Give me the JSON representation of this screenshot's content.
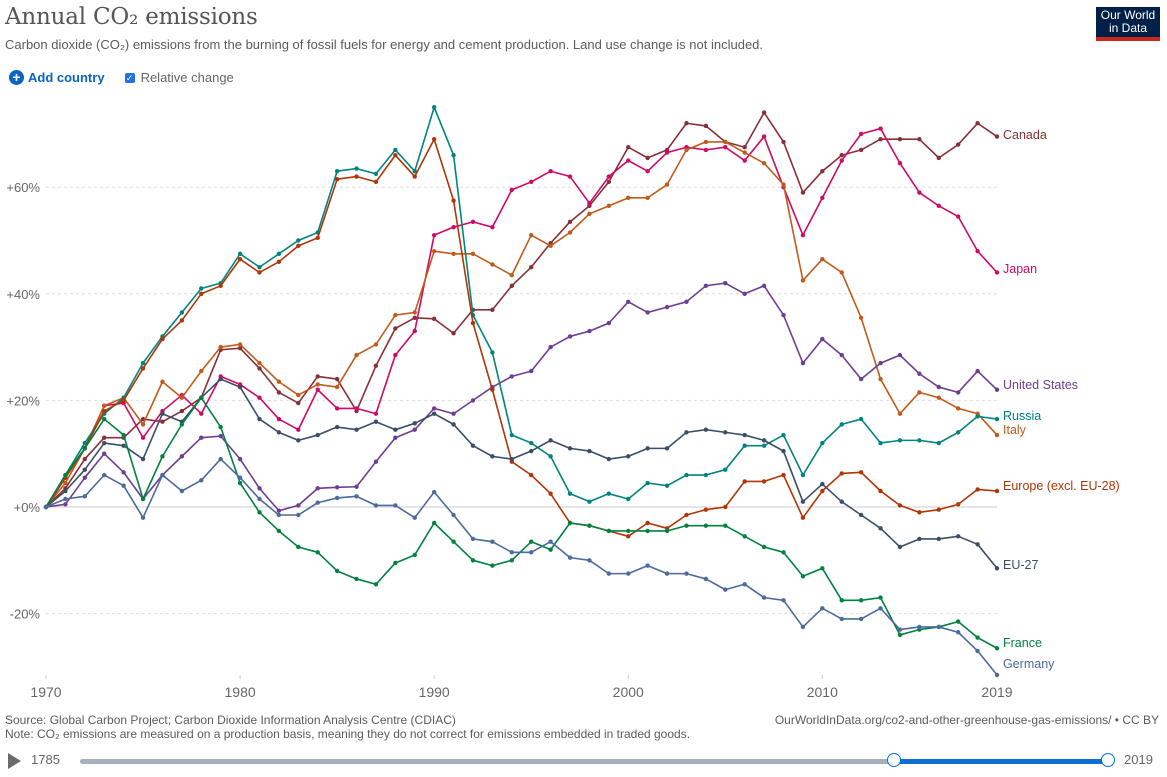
{
  "header": {
    "title": "Annual CO₂ emissions",
    "subtitle": "Carbon dioxide (CO₂) emissions from the burning of fossil fuels for energy and cement production. Land use change is not included.",
    "logo_line1": "Our World",
    "logo_line2": "in Data"
  },
  "controls": {
    "add_country_icon": "plus-circle-icon",
    "add_country_label": "Add country",
    "relative_change_label": "Relative change",
    "relative_change_checked": true
  },
  "footer": {
    "source": "Source: Global Carbon Project; Carbon Dioxide Information Analysis Centre (CDIAC)",
    "note": "Note: CO₂ emissions are measured on a production basis, meaning they do not correct for emissions embedded in traded goods.",
    "url": "OurWorldInData.org/co2-and-other-greenhouse-gas-emissions/ • CC BY"
  },
  "timeline": {
    "start_year": "1785",
    "end_year": "2019",
    "range_start_year": 1970,
    "range_end_year": 2019,
    "min_year": 1785,
    "max_year": 2019
  },
  "chart_data": {
    "type": "line",
    "title": "Annual CO₂ emissions",
    "xlabel": "",
    "ylabel": "Relative change",
    "x_ticks": [
      "1970",
      "1980",
      "1990",
      "2000",
      "2010",
      "2019"
    ],
    "x_tick_values": [
      1970,
      1980,
      1990,
      2000,
      2010,
      2019
    ],
    "y_ticks": [
      "-20%",
      "+0%",
      "+20%",
      "+40%",
      "+60%"
    ],
    "y_tick_values": [
      -20,
      0,
      20,
      40,
      60
    ],
    "xlim": [
      1970,
      2019
    ],
    "ylim": [
      -32,
      76
    ],
    "grid": "horizontal-dashed",
    "legend": "inline-right",
    "x": [
      1970,
      1971,
      1972,
      1973,
      1974,
      1975,
      1976,
      1977,
      1978,
      1979,
      1980,
      1981,
      1982,
      1983,
      1984,
      1985,
      1986,
      1987,
      1988,
      1989,
      1990,
      1991,
      1992,
      1993,
      1994,
      1995,
      1996,
      1997,
      1998,
      1999,
      2000,
      2001,
      2002,
      2003,
      2004,
      2005,
      2006,
      2007,
      2008,
      2009,
      2010,
      2011,
      2012,
      2013,
      2014,
      2015,
      2016,
      2017,
      2018,
      2019
    ],
    "series": [
      {
        "name": "Canada",
        "color": "#883039",
        "values": [
          0,
          3.5,
          9,
          13,
          13,
          16.5,
          16,
          18,
          20.5,
          29.5,
          29.8,
          26,
          21.5,
          19.5,
          24.5,
          24,
          18,
          26.5,
          33.5,
          35.5,
          35.3,
          32.6,
          37,
          37,
          41.5,
          45,
          49.5,
          53.5,
          56.5,
          61,
          67.5,
          65.5,
          67,
          72,
          71.5,
          68.5,
          67.5,
          74,
          68.5,
          59,
          63,
          66,
          67,
          69,
          69,
          69,
          65.5,
          68,
          72,
          69.5
        ]
      },
      {
        "name": "Japan",
        "color": "#cf0a66",
        "values": [
          0,
          5.5,
          11,
          19,
          19.5,
          13,
          18,
          21,
          17.5,
          24.5,
          23,
          20.5,
          16.5,
          14.5,
          22,
          18.5,
          18.5,
          17.5,
          28.5,
          33,
          51,
          52.5,
          53.5,
          52.5,
          59.5,
          61,
          63,
          62,
          57,
          62,
          65,
          63,
          66.5,
          67.5,
          67,
          67.5,
          65,
          69.5,
          60,
          51,
          58,
          65,
          70,
          71,
          64.5,
          59,
          56.5,
          54.5,
          48,
          44
        ]
      },
      {
        "name": "Italy",
        "color": "#c15b1b",
        "values": [
          0,
          4.5,
          11,
          19,
          20.5,
          15.5,
          23.5,
          20.5,
          25.5,
          30,
          30.5,
          27,
          23.5,
          21,
          23,
          22.5,
          28.5,
          30.5,
          36,
          36.5,
          48,
          47.5,
          47.5,
          45.5,
          43.5,
          51,
          49,
          51.5,
          55,
          56.5,
          58,
          58,
          60.5,
          67,
          68.5,
          68.5,
          66.5,
          64.5,
          60.5,
          42.5,
          46.5,
          44,
          35.5,
          24,
          17.5,
          21.5,
          20.5,
          18.5,
          17.5,
          13.5
        ]
      },
      {
        "name": "United States",
        "color": "#6d3e91",
        "values": [
          0,
          0.5,
          5.5,
          10,
          6.5,
          1.5,
          6,
          9.5,
          13,
          13.3,
          9,
          3.5,
          -0.7,
          0.3,
          3.5,
          3.7,
          3.8,
          8.5,
          13,
          14.5,
          18.5,
          17.5,
          20,
          22.5,
          24.5,
          25.5,
          30,
          32,
          33,
          34.5,
          38.5,
          36.5,
          37.5,
          38.5,
          41.5,
          42,
          40,
          41.5,
          36,
          27,
          31.5,
          28.5,
          24,
          27,
          28.5,
          25,
          22.5,
          21.5,
          25.5,
          22
        ]
      },
      {
        "name": "Russia",
        "color": "#00847e",
        "values": [
          0,
          6,
          12,
          17.5,
          20.5,
          27,
          32,
          36.5,
          41,
          42,
          47.5,
          45,
          47.5,
          50,
          51.5,
          63,
          63.5,
          62.5,
          67,
          63,
          75,
          66,
          36,
          29,
          13.5,
          12,
          9.5,
          2.5,
          1,
          2.5,
          1.5,
          4.5,
          4,
          6,
          6,
          7,
          11.5,
          11.5,
          13.5,
          6,
          12,
          15.5,
          16.5,
          12,
          12.5,
          12.5,
          12,
          14,
          17,
          16.5
        ]
      },
      {
        "name": "Europe (excl. EU-28)",
        "color": "#b13507",
        "values": [
          0,
          5.5,
          11,
          18,
          20,
          26,
          31.5,
          35,
          40,
          41.5,
          46.5,
          44,
          46,
          49,
          50.5,
          61.5,
          62,
          61,
          66,
          62,
          69,
          57.5,
          34.5,
          22,
          8.5,
          6,
          2.5,
          -3,
          -3.5,
          -4.5,
          -5.5,
          -3,
          -4,
          -1.5,
          -0.5,
          0,
          4.8,
          4.8,
          6,
          -2,
          3,
          6.3,
          6.5,
          3,
          0.3,
          -1,
          -0.5,
          0.5,
          3.3,
          3
        ]
      },
      {
        "name": "EU-27",
        "color": "#3c4e66",
        "values": [
          0,
          3,
          7,
          12,
          11.5,
          9,
          17.5,
          16,
          20.5,
          24,
          22.5,
          16.5,
          14,
          12.5,
          13.5,
          15,
          14.5,
          16,
          14.5,
          15.7,
          17.5,
          15.5,
          11.5,
          9.5,
          9,
          10.5,
          12.5,
          11,
          10.5,
          9,
          9.5,
          11,
          11,
          14,
          14.5,
          14,
          13.5,
          12.5,
          10.5,
          1,
          4.3,
          1,
          -1.5,
          -4,
          -7.5,
          -6,
          -6,
          -5.5,
          -7,
          -11.5
        ]
      },
      {
        "name": "France",
        "color": "#00813f",
        "values": [
          0,
          6,
          11,
          16.5,
          13.5,
          1.5,
          9.5,
          15.5,
          20.5,
          15,
          4.5,
          -1,
          -4.5,
          -7.5,
          -8.5,
          -12,
          -13.5,
          -14.5,
          -10.5,
          -9,
          -3,
          -6.5,
          -10,
          -11,
          -10,
          -6.5,
          -8,
          -3,
          -3.5,
          -4.5,
          -4.5,
          -4.5,
          -4.5,
          -3.5,
          -3.5,
          -3.5,
          -5.5,
          -7.5,
          -8.5,
          -13,
          -11.5,
          -17.5,
          -17.5,
          -17,
          -24,
          -23,
          -22.5,
          -21.5,
          -24.5,
          -26.5
        ]
      },
      {
        "name": "Germany",
        "color": "#4c6a9c",
        "values": [
          0,
          1.5,
          2,
          6,
          4,
          -2,
          6,
          3,
          5,
          9,
          5.5,
          1.5,
          -1.5,
          -1.5,
          0.8,
          1.7,
          2,
          0.3,
          0.3,
          -2,
          2.8,
          -1.5,
          -6,
          -6.5,
          -8.5,
          -8.5,
          -6.5,
          -9.5,
          -10,
          -12.5,
          -12.5,
          -11,
          -12.5,
          -12.5,
          -13.5,
          -15.5,
          -14.5,
          -17,
          -17.5,
          -22.5,
          -19,
          -21,
          -21,
          -19,
          -23,
          -22.5,
          -22.5,
          -23.5,
          -27,
          -31.5
        ]
      }
    ]
  }
}
